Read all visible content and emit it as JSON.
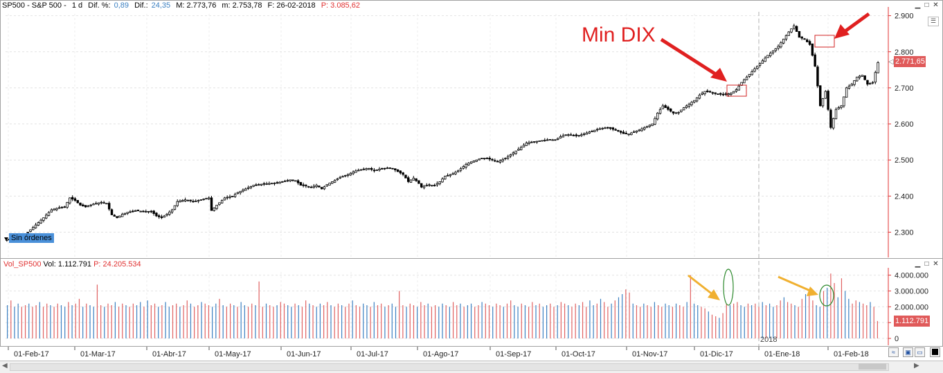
{
  "header": {
    "symbol": "SP500 - S&P 500 -",
    "period": "1 d",
    "dif_pct_label": "Dif. %:",
    "dif_pct_value": "0,89",
    "dif_label": "Dif.:",
    "dif_value": "24,35",
    "max_label": "M: 2.773,76",
    "min_label": "m: 2.753,78",
    "date_label": "F: 26-02-2018",
    "p_label": "P: 3.085,62"
  },
  "volume_header": {
    "name": "Vol_SP500",
    "vol_label": "Vol: 1.112.791",
    "p_label": "P: 24.205.534"
  },
  "order_label": "Sin órdenes",
  "annotation": "Min DIX",
  "price_tag": "2.771,65",
  "volume_tag": "1.112.791",
  "year_marker": "2018",
  "colors": {
    "up": "#ffffff",
    "down": "#000000",
    "vol_up": "#3a7fc1",
    "vol_down": "#e06060",
    "annotation": "#e02020",
    "arrow_orange": "#f0b030",
    "ellipse_green": "#2d8a2d",
    "price_axis": "#e03030"
  },
  "chart_data": [
    {
      "type": "candlestick",
      "title": "SP500 - S&P 500 - 1 d",
      "x_ticks": [
        "01-Feb-17",
        "01-Mar-17",
        "01-Abr-17",
        "01-May-17",
        "01-Jun-17",
        "01-Jul-17",
        "01-Ago-17",
        "01-Sep-17",
        "01-Oct-17",
        "01-Nov-17",
        "01-Dic-17",
        "01-Ene-18",
        "01-Feb-18"
      ],
      "y_ticks": [
        "2.300",
        "2.400",
        "2.500",
        "2.600",
        "2.700",
        "2.800",
        "2.900"
      ],
      "ylim": [
        2230,
        2905
      ],
      "close_path": [
        [
          0,
          2280
        ],
        [
          4,
          2285
        ],
        [
          8,
          2300
        ],
        [
          11,
          2320
        ],
        [
          14,
          2340
        ],
        [
          17,
          2362
        ],
        [
          20,
          2368
        ],
        [
          22,
          2370
        ],
        [
          24,
          2395
        ],
        [
          26,
          2388
        ],
        [
          28,
          2375
        ],
        [
          30,
          2370
        ],
        [
          33,
          2378
        ],
        [
          36,
          2383
        ],
        [
          38,
          2380
        ],
        [
          40,
          2348
        ],
        [
          42,
          2340
        ],
        [
          44,
          2350
        ],
        [
          46,
          2355
        ],
        [
          49,
          2360
        ],
        [
          52,
          2357
        ],
        [
          55,
          2358
        ],
        [
          57,
          2345
        ],
        [
          59,
          2340
        ],
        [
          61,
          2350
        ],
        [
          63,
          2362
        ],
        [
          65,
          2385
        ],
        [
          68,
          2390
        ],
        [
          71,
          2385
        ],
        [
          73,
          2388
        ],
        [
          75,
          2392
        ],
        [
          77,
          2395
        ],
        [
          78,
          2360
        ],
        [
          80,
          2375
        ],
        [
          83,
          2395
        ],
        [
          86,
          2400
        ],
        [
          88,
          2410
        ],
        [
          91,
          2420
        ],
        [
          94,
          2430
        ],
        [
          97,
          2433
        ],
        [
          100,
          2435
        ],
        [
          103,
          2437
        ],
        [
          105,
          2440
        ],
        [
          108,
          2445
        ],
        [
          110,
          2443
        ],
        [
          112,
          2430
        ],
        [
          114,
          2428
        ],
        [
          116,
          2425
        ],
        [
          118,
          2430
        ],
        [
          120,
          2420
        ],
        [
          122,
          2432
        ],
        [
          124,
          2440
        ],
        [
          127,
          2452
        ],
        [
          130,
          2460
        ],
        [
          133,
          2470
        ],
        [
          136,
          2475
        ],
        [
          138,
          2477
        ],
        [
          140,
          2470
        ],
        [
          142,
          2475
        ],
        [
          145,
          2478
        ],
        [
          147,
          2477
        ],
        [
          149,
          2468
        ],
        [
          151,
          2460
        ],
        [
          153,
          2440
        ],
        [
          155,
          2450
        ],
        [
          157,
          2435
        ],
        [
          158,
          2425
        ],
        [
          160,
          2430
        ],
        [
          163,
          2430
        ],
        [
          165,
          2440
        ],
        [
          167,
          2455
        ],
        [
          170,
          2462
        ],
        [
          172,
          2470
        ],
        [
          175,
          2488
        ],
        [
          177,
          2495
        ],
        [
          179,
          2500
        ],
        [
          181,
          2505
        ],
        [
          183,
          2505
        ],
        [
          185,
          2500
        ],
        [
          187,
          2495
        ],
        [
          190,
          2505
        ],
        [
          192,
          2515
        ],
        [
          194,
          2525
        ],
        [
          196,
          2535
        ],
        [
          198,
          2547
        ],
        [
          200,
          2550
        ],
        [
          203,
          2553
        ],
        [
          205,
          2555
        ],
        [
          207,
          2557
        ],
        [
          209,
          2555
        ],
        [
          211,
          2565
        ],
        [
          213,
          2570
        ],
        [
          215,
          2570
        ],
        [
          217,
          2567
        ],
        [
          219,
          2570
        ],
        [
          221,
          2575
        ],
        [
          223,
          2580
        ],
        [
          225,
          2585
        ],
        [
          227,
          2588
        ],
        [
          229,
          2590
        ],
        [
          231,
          2585
        ],
        [
          233,
          2580
        ],
        [
          235,
          2573
        ],
        [
          237,
          2572
        ],
        [
          239,
          2578
        ],
        [
          241,
          2583
        ],
        [
          243,
          2590
        ],
        [
          246,
          2600
        ],
        [
          248,
          2630
        ],
        [
          250,
          2650
        ],
        [
          252,
          2640
        ],
        [
          254,
          2630
        ],
        [
          256,
          2632
        ],
        [
          258,
          2645
        ],
        [
          260,
          2655
        ],
        [
          262,
          2665
        ],
        [
          264,
          2680
        ],
        [
          266,
          2690
        ],
        [
          268,
          2688
        ],
        [
          270,
          2684
        ],
        [
          272,
          2682
        ],
        [
          274,
          2682
        ],
        [
          276,
          2685
        ],
        [
          278,
          2695
        ],
        [
          280,
          2715
        ],
        [
          282,
          2730
        ],
        [
          284,
          2745
        ],
        [
          286,
          2760
        ],
        [
          288,
          2775
        ],
        [
          290,
          2790
        ],
        [
          292,
          2802
        ],
        [
          294,
          2815
        ],
        [
          296,
          2835
        ],
        [
          298,
          2855
        ],
        [
          300,
          2872
        ],
        [
          302,
          2840
        ],
        [
          304,
          2835
        ],
        [
          306,
          2820
        ],
        [
          308,
          2760
        ],
        [
          310,
          2650
        ],
        [
          312,
          2690
        ],
        [
          314,
          2590
        ],
        [
          316,
          2640
        ],
        [
          318,
          2650
        ],
        [
          320,
          2700
        ],
        [
          322,
          2710
        ],
        [
          324,
          2730
        ],
        [
          326,
          2735
        ],
        [
          328,
          2710
        ],
        [
          330,
          2715
        ],
        [
          332,
          2770
        ]
      ]
    },
    {
      "type": "bar",
      "title": "Vol_SP500",
      "y_ticks": [
        "0",
        "1.000.000",
        "2.000.000",
        "3.000.000",
        "4.000.000"
      ],
      "ylim": [
        0,
        4200000
      ],
      "values_millions": [
        2.1,
        2.4,
        2.0,
        2.2,
        2.0,
        2.1,
        2.2,
        2.0,
        2.1,
        2.3,
        2.0,
        2.2,
        2.1,
        2.0,
        2.2,
        2.1,
        2.0,
        2.3,
        2.1,
        2.2,
        2.5,
        2.0,
        2.2,
        2.1,
        2.0,
        3.4,
        2.1,
        2.0,
        2.2,
        2.1,
        2.3,
        2.0,
        2.2,
        2.1,
        2.0,
        2.2,
        2.1,
        2.3,
        2.0,
        2.4,
        2.1,
        2.2,
        2.0,
        2.1,
        2.3,
        2.0,
        2.1,
        2.2,
        2.0,
        2.1,
        2.4,
        2.2,
        2.0,
        2.1,
        2.3,
        2.2,
        2.1,
        2.0,
        2.2,
        2.5,
        2.1,
        2.0,
        2.2,
        2.1,
        2.0,
        2.3,
        2.1,
        2.0,
        2.2,
        2.1,
        3.6,
        2.0,
        2.2,
        2.1,
        2.0,
        2.1,
        2.3,
        2.2,
        2.1,
        2.0,
        2.2,
        2.1,
        2.0,
        2.4,
        2.2,
        2.1,
        2.0,
        2.2,
        2.1,
        2.3,
        2.1,
        2.0,
        2.2,
        2.1,
        2.0,
        2.2,
        2.4,
        2.1,
        2.0,
        2.2,
        2.1,
        2.0,
        2.3,
        2.1,
        2.2,
        2.0,
        2.1,
        2.2,
        2.0,
        3.0,
        2.1,
        2.0,
        2.2,
        2.1,
        2.0,
        2.3,
        2.1,
        2.2,
        2.0,
        2.1,
        2.0,
        2.2,
        2.1,
        2.0,
        2.3,
        2.1,
        2.2,
        2.0,
        2.1,
        2.2,
        2.0,
        2.1,
        2.3,
        2.2,
        2.1,
        2.0,
        2.2,
        2.1,
        2.0,
        2.2,
        2.4,
        2.1,
        2.0,
        2.2,
        2.1,
        2.0,
        2.3,
        2.1,
        2.2,
        2.0,
        2.1,
        2.2,
        2.0,
        2.1,
        2.3,
        2.2,
        2.1,
        2.0,
        2.2,
        2.1,
        2.3,
        2.0,
        2.4,
        2.1,
        2.2,
        2.5,
        2.3,
        2.0,
        2.2,
        2.4,
        2.6,
        2.8,
        3.1,
        2.9,
        2.2,
        2.1,
        2.0,
        2.2,
        2.1,
        2.0,
        2.3,
        2.1,
        2.0,
        2.2,
        2.1,
        2.0,
        2.2,
        2.1,
        2.0,
        2.3,
        4.0,
        2.2,
        2.1,
        2.0,
        1.9,
        1.7,
        1.5,
        1.4,
        1.3,
        1.6,
        2.2,
        2.1,
        2.2,
        2.3,
        2.1,
        2.0,
        2.2,
        2.1,
        2.2,
        2.0,
        2.3,
        2.1,
        2.2,
        2.0,
        2.1,
        2.4,
        2.6,
        2.3,
        2.2,
        2.1,
        2.0,
        2.5,
        2.8,
        3.0,
        2.4,
        2.1,
        2.0,
        3.0,
        3.2,
        4.1,
        3.5,
        2.6,
        3.8,
        3.0,
        2.5,
        2.2,
        2.4,
        2.3,
        2.2,
        2.1,
        2.3,
        2.0,
        1.1
      ]
    }
  ]
}
